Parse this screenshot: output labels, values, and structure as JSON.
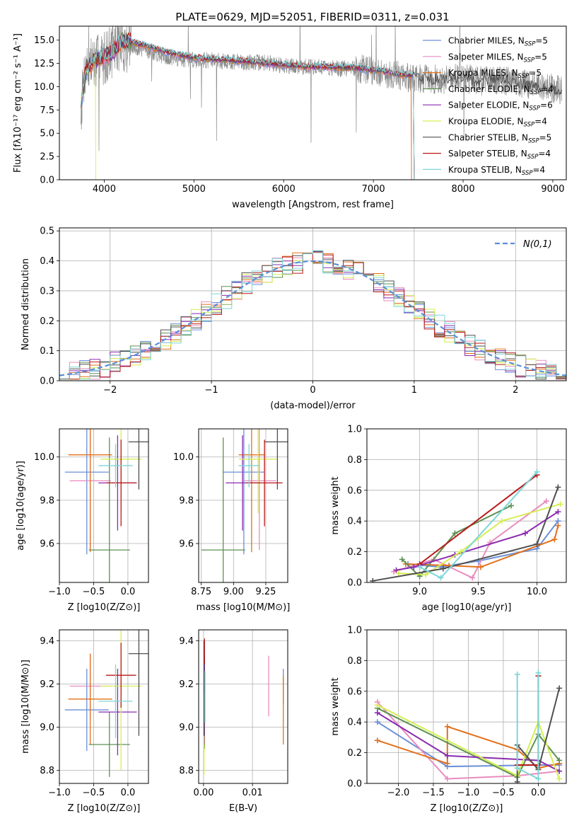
{
  "figure_title": "PLATE=0629, MJD=52051, FIBERID=0311, z=0.031",
  "colors": [
    "#6a8fd8",
    "#e98bbf",
    "#e2701b",
    "#5d9150",
    "#8a2bb0",
    "#d6ee52",
    "#505050",
    "#b81a1a",
    "#7dd6d8"
  ],
  "chart_data": [
    {
      "id": "spectrum",
      "type": "line",
      "xlabel": "wavelength [Angstrom, rest frame]",
      "ylabel": "Flux [fλ10⁻¹⁷ erg cm⁻² s⁻¹ A⁻¹]",
      "xlim": [
        3500,
        9150
      ],
      "ylim": [
        0,
        16.5
      ],
      "xticks": [
        4000,
        5000,
        6000,
        7000,
        8000,
        9000
      ],
      "xtick_labels": [
        "4000",
        "5000",
        "6000",
        "7000",
        "8000",
        "9000"
      ],
      "yticks": [
        0,
        2.5,
        5,
        7.5,
        10,
        12.5,
        15
      ],
      "ytick_labels": [
        "0.0",
        "2.5",
        "5.0",
        "7.5",
        "10.0",
        "12.5",
        "15.0"
      ],
      "grid": false,
      "legend": "top-right",
      "observed_color": "#8c8c8c",
      "observed_x": [
        3740,
        3780,
        3850,
        3950,
        4050,
        4150,
        4300,
        4450,
        4600,
        4800,
        5000,
        5200,
        5400,
        5600,
        5800,
        6000,
        6200,
        6400,
        6600,
        6800,
        7000,
        7200,
        7400,
        7600,
        7800,
        8000,
        8200,
        8400,
        8600,
        8800,
        9000,
        9100
      ],
      "observed_y": [
        7.5,
        11.5,
        12.5,
        12.8,
        13.5,
        14.6,
        14.3,
        14.0,
        13.5,
        13.0,
        12.9,
        12.8,
        12.7,
        12.6,
        12.6,
        12.3,
        12.1,
        12.2,
        11.9,
        12.0,
        11.6,
        11.3,
        11.0,
        10.8,
        10.8,
        10.9,
        10.6,
        10.8,
        10.4,
        10.2,
        9.8,
        9.6
      ],
      "model_x": [
        3740,
        3800,
        3900,
        4000,
        4100,
        4200,
        4300,
        4500,
        4700,
        5000,
        5300,
        5600,
        5900,
        6200,
        6500,
        6800,
        7100,
        7300,
        7500
      ],
      "model_y": [
        8.0,
        11.8,
        12.6,
        13.0,
        13.6,
        14.8,
        14.6,
        14.1,
        13.5,
        12.9,
        12.7,
        12.5,
        12.2,
        12.0,
        11.9,
        11.8,
        11.5,
        11.1,
        11.0
      ],
      "series": [
        {
          "name": "Chabrier MILES, N_SSP=5",
          "name_main": "Chabrier MILES, N",
          "name_sub": "SSP",
          "name_tail": "=5",
          "color": "#6a8fd8"
        },
        {
          "name": "Salpeter MILES, N_SSP=5",
          "name_main": "Salpeter MILES, N",
          "name_sub": "SSP",
          "name_tail": "=5",
          "color": "#e98bbf"
        },
        {
          "name": "Kroupa MILES, N_SSP=5",
          "name_main": "Kroupa MILES, N",
          "name_sub": "SSP",
          "name_tail": "=5",
          "color": "#e2701b"
        },
        {
          "name": "Chabrier ELODIE, N_SSP=4",
          "name_main": "Chabrier ELODIE, N",
          "name_sub": "SSP",
          "name_tail": "=4",
          "color": "#5d9150"
        },
        {
          "name": "Salpeter ELODIE, N_SSP=6",
          "name_main": "Salpeter ELODIE, N",
          "name_sub": "SSP",
          "name_tail": "=6",
          "color": "#8a2bb0"
        },
        {
          "name": "Kroupa ELODIE, N_SSP=4",
          "name_main": "Kroupa ELODIE, N",
          "name_sub": "SSP",
          "name_tail": "=4",
          "color": "#d6ee52"
        },
        {
          "name": "Chabrier STELIB, N_SSP=5",
          "name_main": "Chabrier STELIB, N",
          "name_sub": "SSP",
          "name_tail": "=5",
          "color": "#505050"
        },
        {
          "name": "Salpeter STELIB, N_SSP=4",
          "name_main": "Salpeter STELIB, N",
          "name_sub": "SSP",
          "name_tail": "=4",
          "color": "#b81a1a"
        },
        {
          "name": "Kroupa STELIB, N_SSP=4",
          "name_main": "Kroupa STELIB, N",
          "name_sub": "SSP",
          "name_tail": "=4",
          "color": "#7dd6d8"
        }
      ]
    },
    {
      "id": "residuals",
      "type": "step",
      "xlabel": "(data-model)/error",
      "ylabel": "Normed distribution",
      "xlim": [
        -2.5,
        2.5
      ],
      "ylim": [
        0,
        0.51
      ],
      "xticks": [
        -2,
        -1,
        0,
        1,
        2
      ],
      "xtick_labels": [
        "−2",
        "−1",
        "0",
        "1",
        "2"
      ],
      "yticks": [
        0,
        0.1,
        0.2,
        0.3,
        0.4,
        0.5
      ],
      "ytick_labels": [
        "0.0",
        "0.1",
        "0.2",
        "0.3",
        "0.4",
        "0.5"
      ],
      "grid": true,
      "legend": "top-right",
      "reference_label": "N(0,1)",
      "reference_color": "#5b8fd6",
      "bin_width": 0.1
    },
    {
      "id": "age_vs_z",
      "type": "errorbar",
      "xlabel": "Z [log10(Z/Z⊙)]",
      "ylabel": "age  [log10(age/yr)]",
      "xlim": [
        -1.0,
        0.3
      ],
      "ylim": [
        9.42,
        10.13
      ],
      "xticks": [
        -1.0,
        -0.5,
        0.0
      ],
      "xtick_labels": [
        "−1.0",
        "−0.5",
        "0.0"
      ],
      "yticks": [
        9.6,
        9.8,
        10.0
      ],
      "ytick_labels": [
        "9.6",
        "9.8",
        "10.0"
      ],
      "grid": true,
      "points": [
        {
          "x": -0.6,
          "xerr": 0.32,
          "y": 9.93,
          "yerr": 0.38,
          "color": "#6a8fd8"
        },
        {
          "x": -0.55,
          "xerr": 0.3,
          "y": 9.89,
          "yerr": 0.32,
          "color": "#e98bbf"
        },
        {
          "x": -0.55,
          "xerr": 0.32,
          "y": 10.01,
          "yerr": 0.45,
          "color": "#e2701b"
        },
        {
          "x": -0.27,
          "xerr": 0.3,
          "y": 9.57,
          "yerr": 0.52,
          "color": "#5d9150"
        },
        {
          "x": -0.15,
          "xerr": 0.28,
          "y": 9.88,
          "yerr": 0.22,
          "color": "#8a2bb0"
        },
        {
          "x": -0.1,
          "xerr": 0.3,
          "y": 9.99,
          "yerr": 0.25,
          "color": "#d6ee52"
        },
        {
          "x": 0.16,
          "xerr": 0.15,
          "y": 10.07,
          "yerr": 0.22,
          "color": "#505050"
        },
        {
          "x": -0.1,
          "xerr": 0.22,
          "y": 9.88,
          "yerr": 0.2,
          "color": "#b81a1a"
        },
        {
          "x": -0.18,
          "xerr": 0.25,
          "y": 9.96,
          "yerr": 0.1,
          "color": "#7dd6d8"
        }
      ]
    },
    {
      "id": "age_vs_mass",
      "type": "errorbar",
      "xlabel": "mass [log10(M/M⊙)]",
      "ylabel": "",
      "xlim": [
        8.73,
        9.42
      ],
      "ylim": [
        9.42,
        10.13
      ],
      "xticks": [
        8.75,
        9.0,
        9.25
      ],
      "xtick_labels": [
        "8.75",
        "9.00",
        "9.25"
      ],
      "yticks": [
        9.6,
        9.8,
        10.0
      ],
      "ytick_labels": [
        "9.6",
        "9.8",
        "10.0"
      ],
      "grid": true,
      "points": [
        {
          "x": 9.08,
          "xerr": 0.16,
          "y": 9.93,
          "yerr": 0.38,
          "color": "#6a8fd8"
        },
        {
          "x": 9.2,
          "xerr": 0.13,
          "y": 9.89,
          "yerr": 0.32,
          "color": "#e98bbf"
        },
        {
          "x": 9.14,
          "xerr": 0.1,
          "y": 10.01,
          "yerr": 0.45,
          "color": "#e2701b"
        },
        {
          "x": 8.92,
          "xerr": 0.17,
          "y": 9.57,
          "yerr": 0.52,
          "color": "#5d9150"
        },
        {
          "x": 9.07,
          "xerr": 0.13,
          "y": 9.88,
          "yerr": 0.22,
          "color": "#8a2bb0"
        },
        {
          "x": 9.19,
          "xerr": 0.15,
          "y": 9.99,
          "yerr": 0.25,
          "color": "#d6ee52"
        },
        {
          "x": 9.34,
          "xerr": 0.1,
          "y": 10.07,
          "yerr": 0.22,
          "color": "#505050"
        },
        {
          "x": 9.24,
          "xerr": 0.14,
          "y": 9.88,
          "yerr": 0.2,
          "color": "#b81a1a"
        },
        {
          "x": 9.12,
          "xerr": 0.08,
          "y": 9.96,
          "yerr": 0.1,
          "color": "#7dd6d8"
        }
      ]
    },
    {
      "id": "weight_vs_age",
      "type": "line",
      "xlabel": "age  [log10(age/yr)]",
      "ylabel": "mass weight",
      "xlim": [
        8.55,
        10.25
      ],
      "ylim": [
        0,
        1.0
      ],
      "xticks": [
        9.0,
        9.5,
        10.0
      ],
      "xtick_labels": [
        "9.0",
        "9.5",
        "10.0"
      ],
      "yticks": [
        0,
        0.2,
        0.4,
        0.6,
        0.8,
        1.0
      ],
      "ytick_labels": [
        "0.0",
        "0.2",
        "0.4",
        "0.6",
        "0.8",
        "1.0"
      ],
      "grid": true,
      "series": [
        {
          "color": "#6a8fd8",
          "x": [
            8.9,
            9.18,
            9.5,
            10.0,
            10.18
          ],
          "y": [
            0.12,
            0.1,
            0.14,
            0.22,
            0.4
          ]
        },
        {
          "color": "#e98bbf",
          "x": [
            8.78,
            9.12,
            9.45,
            9.6,
            10.08
          ],
          "y": [
            0.07,
            0.15,
            0.03,
            0.26,
            0.53
          ]
        },
        {
          "color": "#e2701b",
          "x": [
            8.88,
            9.25,
            9.52,
            10.15,
            10.18
          ],
          "y": [
            0.12,
            0.11,
            0.1,
            0.28,
            0.37
          ]
        },
        {
          "color": "#5d9150",
          "x": [
            8.85,
            9.0,
            9.3,
            9.78
          ],
          "y": [
            0.15,
            0.04,
            0.32,
            0.5
          ]
        },
        {
          "color": "#8a2bb0",
          "x": [
            8.8,
            8.95,
            9.3,
            9.9,
            10.18
          ],
          "y": [
            0.08,
            0.1,
            0.18,
            0.32,
            0.46
          ]
        },
        {
          "color": "#d6ee52",
          "x": [
            8.82,
            9.05,
            9.35,
            9.7,
            10.2
          ],
          "y": [
            0.06,
            0.05,
            0.2,
            0.4,
            0.51
          ]
        },
        {
          "color": "#505050",
          "x": [
            8.6,
            9.2,
            10.0,
            10.18
          ],
          "y": [
            0.01,
            0.09,
            0.25,
            0.62
          ]
        },
        {
          "color": "#b81a1a",
          "x": [
            9.0,
            10.0
          ],
          "y": [
            0.12,
            0.7
          ]
        },
        {
          "color": "#7dd6d8",
          "x": [
            9.0,
            9.18,
            10.0
          ],
          "y": [
            0.1,
            0.03,
            0.72
          ]
        }
      ]
    },
    {
      "id": "mass_vs_z",
      "type": "errorbar",
      "xlabel": "Z [log10(Z/Z⊙)]",
      "ylabel": "mass [log10(M/M⊙)]",
      "xlim": [
        -1.0,
        0.3
      ],
      "ylim": [
        8.74,
        9.45
      ],
      "xticks": [
        -1.0,
        -0.5,
        0.0
      ],
      "xtick_labels": [
        "−1.0",
        "−0.5",
        "0.0"
      ],
      "yticks": [
        8.8,
        9.0,
        9.2,
        9.4
      ],
      "ytick_labels": [
        "8.8",
        "9.0",
        "9.2",
        "9.4"
      ],
      "grid": true,
      "points": [
        {
          "x": -0.6,
          "xerr": 0.32,
          "y": 9.08,
          "yerr": 0.19,
          "color": "#6a8fd8"
        },
        {
          "x": -0.55,
          "xerr": 0.3,
          "y": 9.19,
          "yerr": 0.15,
          "color": "#e98bbf"
        },
        {
          "x": -0.55,
          "xerr": 0.32,
          "y": 9.13,
          "yerr": 0.21,
          "color": "#e2701b"
        },
        {
          "x": -0.27,
          "xerr": 0.3,
          "y": 8.92,
          "yerr": 0.15,
          "color": "#5d9150"
        },
        {
          "x": -0.15,
          "xerr": 0.28,
          "y": 9.07,
          "yerr": 0.2,
          "color": "#8a2bb0"
        },
        {
          "x": -0.1,
          "xerr": 0.3,
          "y": 9.19,
          "yerr": 0.39,
          "color": "#d6ee52"
        },
        {
          "x": 0.16,
          "xerr": 0.15,
          "y": 9.34,
          "yerr": 0.38,
          "color": "#505050"
        },
        {
          "x": -0.1,
          "xerr": 0.22,
          "y": 9.24,
          "yerr": 0.15,
          "color": "#b81a1a"
        },
        {
          "x": -0.18,
          "xerr": 0.25,
          "y": 9.12,
          "yerr": 0.17,
          "color": "#7dd6d8"
        }
      ]
    },
    {
      "id": "mass_vs_ebv",
      "type": "errorbar",
      "xlabel": "E(B-V)",
      "ylabel": "",
      "xlim": [
        -0.001,
        0.0172
      ],
      "ylim": [
        8.74,
        9.45
      ],
      "xticks": [
        0.0,
        0.01
      ],
      "xtick_labels": [
        "0.00",
        "0.01"
      ],
      "yticks": [
        8.8,
        9.0,
        9.2,
        9.4
      ],
      "ytick_labels": [
        "8.8",
        "9.0",
        "9.2",
        "9.4"
      ],
      "grid": true,
      "points": [
        {
          "x": 0.0163,
          "xerr": 0,
          "y": 9.19,
          "yerr": 0.08,
          "color": "#6a8fd8"
        },
        {
          "x": 0.0133,
          "xerr": 0,
          "y": 9.19,
          "yerr": 0.14,
          "color": "#e98bbf"
        },
        {
          "x": 0.0163,
          "xerr": 0,
          "y": 9.08,
          "yerr": 0.16,
          "color": "#e2701b"
        },
        {
          "x": 0.0002,
          "xerr": 0,
          "y": 9.1,
          "yerr": 0.2,
          "color": "#5d9150"
        },
        {
          "x": 0.0002,
          "xerr": 0,
          "y": 9.12,
          "yerr": 0.2,
          "color": "#8a2bb0"
        },
        {
          "x": 0.0001,
          "xerr": 0,
          "y": 8.97,
          "yerr": 0.19,
          "color": "#d6ee52"
        },
        {
          "x": 0.0001,
          "xerr": 0,
          "y": 9.18,
          "yerr": 0.22,
          "color": "#505050"
        },
        {
          "x": 0.0002,
          "xerr": 0,
          "y": 9.35,
          "yerr": 0.06,
          "color": "#b81a1a"
        },
        {
          "x": 0.0003,
          "xerr": 0,
          "y": 9.14,
          "yerr": 0.12,
          "color": "#7dd6d8"
        }
      ]
    },
    {
      "id": "weight_vs_z",
      "type": "line",
      "xlabel": "Z [log10(Z/Z⊙)]",
      "ylabel": "mass weight",
      "xlim": [
        -2.45,
        0.4
      ],
      "ylim": [
        0,
        1.0
      ],
      "xticks": [
        -2.0,
        -1.5,
        -1.0,
        -0.5,
        0.0
      ],
      "xtick_labels": [
        "−2.0",
        "−1.5",
        "−1.0",
        "−0.5",
        "0.0"
      ],
      "yticks": [
        0,
        0.2,
        0.4,
        0.6,
        0.8,
        1.0
      ],
      "ytick_labels": [
        "0.0",
        "0.2",
        "0.4",
        "0.6",
        "0.8",
        "1.0"
      ],
      "grid": true,
      "series": [
        {
          "color": "#6a8fd8",
          "x": [
            -2.3,
            -1.3,
            0.0,
            0.3
          ],
          "y": [
            0.4,
            0.11,
            0.12,
            0.12
          ]
        },
        {
          "color": "#e98bbf",
          "x": [
            -2.3,
            -1.3,
            -0.3,
            0.3
          ],
          "y": [
            0.53,
            0.03,
            0.05,
            0.08
          ]
        },
        {
          "color": "#e2701b",
          "x": [
            -2.3,
            -1.3,
            -1.3,
            -0.3,
            0.0,
            0.3
          ],
          "y": [
            0.28,
            0.13,
            0.37,
            0.22,
            0.1,
            0.13
          ]
        },
        {
          "color": "#5d9150",
          "x": [
            -2.3,
            -0.3,
            0.0,
            0.3
          ],
          "y": [
            0.49,
            0.04,
            0.32,
            0.15
          ]
        },
        {
          "color": "#8a2bb0",
          "x": [
            -2.3,
            -1.3,
            0.0,
            0.3
          ],
          "y": [
            0.46,
            0.18,
            0.15,
            0.08
          ]
        },
        {
          "color": "#d6ee52",
          "x": [
            -2.3,
            -0.3,
            0.0,
            0.3
          ],
          "y": [
            0.51,
            0.05,
            0.4,
            0.03
          ]
        },
        {
          "color": "#505050",
          "x": [
            -0.3,
            -0.3,
            0.0,
            0.3
          ],
          "y": [
            0.01,
            0.25,
            0.09,
            0.62
          ]
        },
        {
          "color": "#b81a1a",
          "x": [
            -0.3,
            0.0,
            0.0
          ],
          "y": [
            0.12,
            0.12,
            0.7
          ]
        },
        {
          "color": "#7dd6d8",
          "x": [
            -0.3,
            -0.3,
            0.0,
            0.0
          ],
          "y": [
            0.71,
            0.1,
            0.03,
            0.72
          ]
        }
      ]
    }
  ]
}
